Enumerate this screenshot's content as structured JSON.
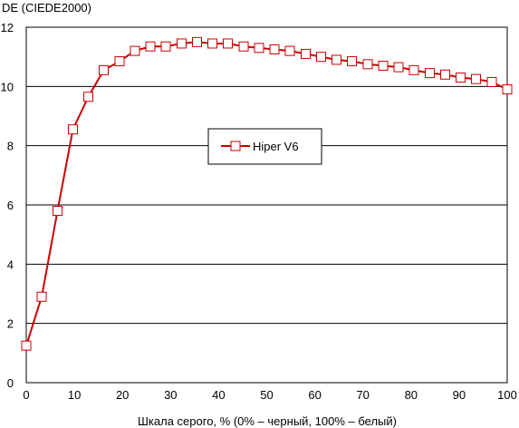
{
  "chart_data": {
    "type": "line",
    "title": "",
    "ylabel": "DE (CIEDE2000)",
    "xlabel": "Шкала серого, % (0% – черный, 100% – белый)",
    "xlim": [
      0,
      100
    ],
    "ylim": [
      0,
      12
    ],
    "x_ticks": [
      0,
      10,
      20,
      30,
      40,
      50,
      60,
      70,
      80,
      90,
      100
    ],
    "y_ticks": [
      0,
      2,
      4,
      6,
      8,
      10,
      12
    ],
    "grid": "horizontal",
    "legend_position": "center-right",
    "series": [
      {
        "name": "Hiper V6",
        "color": "#cc0000",
        "marker": "open-square",
        "x": [
          0,
          3.2,
          6.5,
          9.7,
          12.9,
          16.1,
          19.4,
          22.6,
          25.8,
          29.0,
          32.3,
          35.5,
          38.7,
          41.9,
          45.2,
          48.4,
          51.6,
          54.8,
          58.1,
          61.3,
          64.5,
          67.7,
          71.0,
          74.2,
          77.4,
          80.6,
          83.9,
          87.1,
          90.3,
          93.5,
          96.8,
          100
        ],
        "y": [
          1.25,
          2.9,
          5.8,
          8.55,
          9.65,
          10.55,
          10.85,
          11.2,
          11.35,
          11.35,
          11.45,
          11.5,
          11.45,
          11.45,
          11.35,
          11.3,
          11.25,
          11.2,
          11.1,
          11.0,
          10.9,
          10.85,
          10.75,
          10.7,
          10.65,
          10.55,
          10.45,
          10.4,
          10.3,
          10.25,
          10.15,
          9.9
        ]
      }
    ]
  }
}
